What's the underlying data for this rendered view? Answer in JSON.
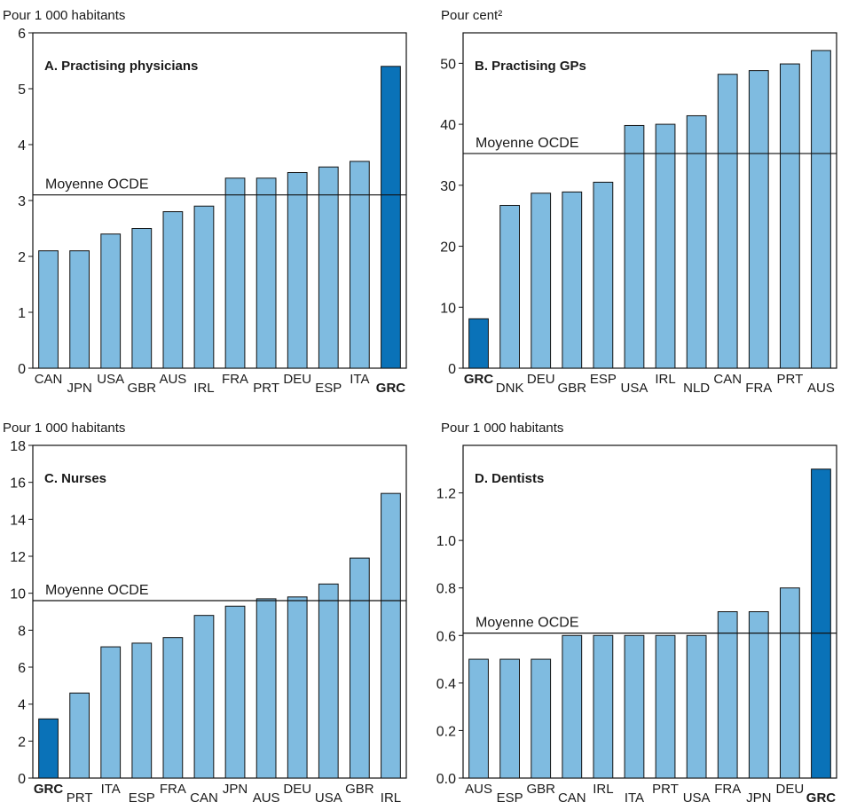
{
  "colors": {
    "bar": "#7fbbe0",
    "highlight": "#0a72b8",
    "outline": "#111111",
    "grid": "#111111",
    "frame": "#111111"
  },
  "chart_data": [
    {
      "type": "bar",
      "title": "A. Practising physicians",
      "unit_label": "Pour 1 000 habitants",
      "ylim": [
        0,
        6
      ],
      "yticks": [
        0,
        1,
        2,
        3,
        4,
        5,
        6
      ],
      "ytick_labels": [
        "0",
        "1",
        "2",
        "3",
        "4",
        "5",
        "6"
      ],
      "categories": [
        "CAN",
        "JPN",
        "USA",
        "GBR",
        "AUS",
        "IRL",
        "FRA",
        "PRT",
        "DEU",
        "ESP",
        "ITA",
        "GRC"
      ],
      "values": [
        2.1,
        2.1,
        2.4,
        2.5,
        2.8,
        2.9,
        3.4,
        3.4,
        3.5,
        3.6,
        3.7,
        5.4
      ],
      "highlight": "GRC",
      "reference_line": {
        "label": "Moyenne OCDE",
        "value": 3.1
      }
    },
    {
      "type": "bar",
      "title": "B. Practising GPs",
      "unit_label": "Pour cent²",
      "ylim": [
        0,
        55
      ],
      "yticks": [
        0,
        10,
        20,
        30,
        40,
        50
      ],
      "ytick_labels": [
        "0",
        "10",
        "20",
        "30",
        "40",
        "50"
      ],
      "categories": [
        "GRC",
        "DNK",
        "DEU",
        "GBR",
        "ESP",
        "USA",
        "IRL",
        "NLD",
        "CAN",
        "FRA",
        "PRT",
        "AUS"
      ],
      "values": [
        8.1,
        26.7,
        28.7,
        28.9,
        30.5,
        39.8,
        40.0,
        41.4,
        48.2,
        48.8,
        49.9,
        52.1
      ],
      "highlight": "GRC",
      "reference_line": {
        "label": "Moyenne OCDE",
        "value": 35.2
      }
    },
    {
      "type": "bar",
      "title": "C. Nurses",
      "unit_label": "Pour 1 000 habitants",
      "ylim": [
        0,
        18
      ],
      "yticks": [
        0,
        2,
        4,
        6,
        8,
        10,
        12,
        14,
        16,
        18
      ],
      "ytick_labels": [
        "0",
        "2",
        "4",
        "6",
        "8",
        "10",
        "12",
        "14",
        "16",
        "18"
      ],
      "categories": [
        "GRC",
        "PRT",
        "ITA",
        "ESP",
        "FRA",
        "CAN",
        "JPN",
        "AUS",
        "DEU",
        "USA",
        "GBR",
        "IRL"
      ],
      "values": [
        3.2,
        4.6,
        7.1,
        7.3,
        7.6,
        8.8,
        9.3,
        9.7,
        9.8,
        10.5,
        11.9,
        15.4
      ],
      "highlight": "GRC",
      "reference_line": {
        "label": "Moyenne OCDE",
        "value": 9.6
      }
    },
    {
      "type": "bar",
      "title": "D. Dentists",
      "unit_label": "Pour 1 000 habitants",
      "ylim": [
        0,
        1.4
      ],
      "yticks": [
        0,
        0.2,
        0.4,
        0.6,
        0.8,
        1.0,
        1.2
      ],
      "ytick_labels": [
        "0.0",
        "0.2",
        "0.4",
        "0.6",
        "0.8",
        "1.0",
        "1.2"
      ],
      "categories": [
        "AUS",
        "ESP",
        "GBR",
        "CAN",
        "IRL",
        "ITA",
        "PRT",
        "USA",
        "FRA",
        "JPN",
        "DEU",
        "GRC"
      ],
      "values": [
        0.5,
        0.5,
        0.5,
        0.6,
        0.6,
        0.6,
        0.6,
        0.6,
        0.7,
        0.7,
        0.8,
        1.3
      ],
      "highlight": "GRC",
      "reference_line": {
        "label": "Moyenne OCDE",
        "value": 0.61
      }
    }
  ]
}
